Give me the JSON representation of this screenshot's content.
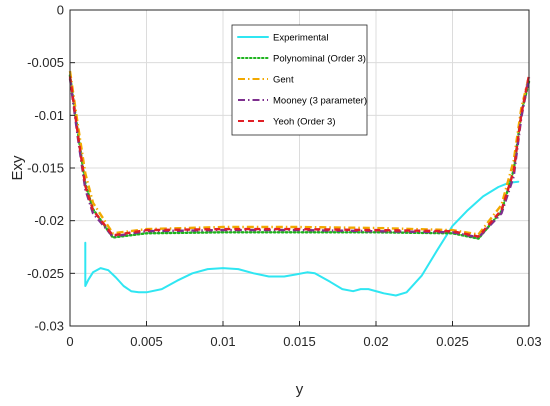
{
  "chart_data": {
    "type": "line",
    "title": "",
    "xlabel": "y",
    "ylabel": "Exy",
    "xlim": [
      0,
      0.03
    ],
    "ylim": [
      -0.03,
      0
    ],
    "x_ticks": [
      "0",
      "0.005",
      "0.01",
      "0.015",
      "0.02",
      "0.025",
      "0.03"
    ],
    "y_ticks": [
      "0",
      "-0.005",
      "-0.01",
      "-0.015",
      "-0.02",
      "-0.025",
      "-0.03"
    ],
    "grid": true,
    "legend_position": "top-right",
    "series": [
      {
        "name": "Experimental",
        "color": "#2FE6F2",
        "dash": "solid",
        "points": [
          [
            0.001,
            -0.0221
          ],
          [
            0.001,
            -0.0262
          ],
          [
            0.0012,
            -0.0256
          ],
          [
            0.0015,
            -0.0249
          ],
          [
            0.002,
            -0.0245
          ],
          [
            0.0025,
            -0.0247
          ],
          [
            0.003,
            -0.0254
          ],
          [
            0.0035,
            -0.0262
          ],
          [
            0.004,
            -0.0267
          ],
          [
            0.0045,
            -0.0268
          ],
          [
            0.005,
            -0.0268
          ],
          [
            0.006,
            -0.0265
          ],
          [
            0.007,
            -0.0257
          ],
          [
            0.008,
            -0.025
          ],
          [
            0.009,
            -0.0246
          ],
          [
            0.01,
            -0.0245
          ],
          [
            0.011,
            -0.0246
          ],
          [
            0.012,
            -0.025
          ],
          [
            0.013,
            -0.0253
          ],
          [
            0.014,
            -0.0253
          ],
          [
            0.0148,
            -0.0251
          ],
          [
            0.0155,
            -0.0249
          ],
          [
            0.016,
            -0.025
          ],
          [
            0.017,
            -0.0258
          ],
          [
            0.0178,
            -0.0265
          ],
          [
            0.0185,
            -0.0267
          ],
          [
            0.019,
            -0.0265
          ],
          [
            0.0195,
            -0.0265
          ],
          [
            0.0205,
            -0.0269
          ],
          [
            0.0213,
            -0.0271
          ],
          [
            0.022,
            -0.0268
          ],
          [
            0.023,
            -0.0252
          ],
          [
            0.024,
            -0.0228
          ],
          [
            0.025,
            -0.0205
          ],
          [
            0.026,
            -0.019
          ],
          [
            0.027,
            -0.0177
          ],
          [
            0.028,
            -0.0168
          ],
          [
            0.0287,
            -0.0164
          ],
          [
            0.0293,
            -0.0163
          ]
        ]
      },
      {
        "name": "Polynominal (Order 3)",
        "color": "#1DB31D",
        "dash": "dotted",
        "points": [
          [
            0,
            -0.0062
          ],
          [
            0.0005,
            -0.0115
          ],
          [
            0.001,
            -0.0165
          ],
          [
            0.0015,
            -0.0189
          ],
          [
            0.0028,
            -0.0216
          ],
          [
            0.005,
            -0.0212
          ],
          [
            0.01,
            -0.0211
          ],
          [
            0.015,
            -0.0211
          ],
          [
            0.02,
            -0.0211
          ],
          [
            0.025,
            -0.0212
          ],
          [
            0.0267,
            -0.0217
          ],
          [
            0.0282,
            -0.0191
          ],
          [
            0.029,
            -0.0152
          ],
          [
            0.0295,
            -0.0098
          ],
          [
            0.03,
            -0.0068
          ]
        ]
      },
      {
        "name": "Gent",
        "color": "#F2A900",
        "dash": "dashdot",
        "points": [
          [
            0,
            -0.0058
          ],
          [
            0.0005,
            -0.0108
          ],
          [
            0.001,
            -0.0155
          ],
          [
            0.0015,
            -0.0183
          ],
          [
            0.0028,
            -0.0212
          ],
          [
            0.005,
            -0.0208
          ],
          [
            0.01,
            -0.0206
          ],
          [
            0.015,
            -0.0206
          ],
          [
            0.02,
            -0.0207
          ],
          [
            0.025,
            -0.0209
          ],
          [
            0.0267,
            -0.0213
          ],
          [
            0.0282,
            -0.0185
          ],
          [
            0.029,
            -0.0143
          ],
          [
            0.0295,
            -0.0093
          ],
          [
            0.03,
            -0.0063
          ]
        ]
      },
      {
        "name": "Mooney (3 parameter)",
        "color": "#7E2F8E",
        "dash": "dashdot",
        "points": [
          [
            0,
            -0.0065
          ],
          [
            0.0005,
            -0.012
          ],
          [
            0.001,
            -0.017
          ],
          [
            0.0015,
            -0.0193
          ],
          [
            0.0028,
            -0.0215
          ],
          [
            0.005,
            -0.021
          ],
          [
            0.01,
            -0.0209
          ],
          [
            0.015,
            -0.0209
          ],
          [
            0.02,
            -0.021
          ],
          [
            0.025,
            -0.0211
          ],
          [
            0.0267,
            -0.0216
          ],
          [
            0.0282,
            -0.0193
          ],
          [
            0.029,
            -0.0158
          ],
          [
            0.0295,
            -0.0102
          ],
          [
            0.03,
            -0.0064
          ]
        ]
      },
      {
        "name": "Yeoh (Order 3)",
        "color": "#E01F26",
        "dash": "dashed",
        "points": [
          [
            0,
            -0.0063
          ],
          [
            0.0005,
            -0.0117
          ],
          [
            0.001,
            -0.0167
          ],
          [
            0.0015,
            -0.019
          ],
          [
            0.0028,
            -0.0214
          ],
          [
            0.005,
            -0.0209
          ],
          [
            0.01,
            -0.0208
          ],
          [
            0.015,
            -0.0208
          ],
          [
            0.02,
            -0.0209
          ],
          [
            0.025,
            -0.021
          ],
          [
            0.0267,
            -0.0215
          ],
          [
            0.0282,
            -0.019
          ],
          [
            0.029,
            -0.0153
          ],
          [
            0.0295,
            -0.0099
          ],
          [
            0.03,
            -0.0062
          ]
        ]
      }
    ]
  }
}
